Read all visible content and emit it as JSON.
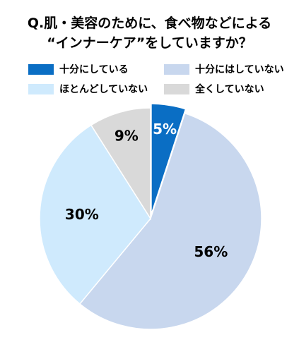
{
  "title": {
    "line1": "Q.肌・美容のために、食べ物などによる",
    "line2": "“インナーケア”をしていますか？"
  },
  "chart_data": {
    "type": "pie",
    "start_angle": "12 o'clock",
    "direction": "clockwise",
    "legend_position": "top",
    "categories": [
      "十分にしている",
      "十分にはしていない",
      "ほとんどしていない",
      "全くしていない"
    ],
    "values": [
      5,
      56,
      30,
      9
    ],
    "labels": [
      "5%",
      "56%",
      "30%",
      "9%"
    ],
    "colors": [
      "#0a6ec4",
      "#c8d7ee",
      "#cfeafd",
      "#d9d9d9"
    ],
    "label_colors": [
      "#ffffff",
      "#000000",
      "#000000",
      "#000000"
    ],
    "exploded": [
      true,
      false,
      false,
      false
    ]
  }
}
